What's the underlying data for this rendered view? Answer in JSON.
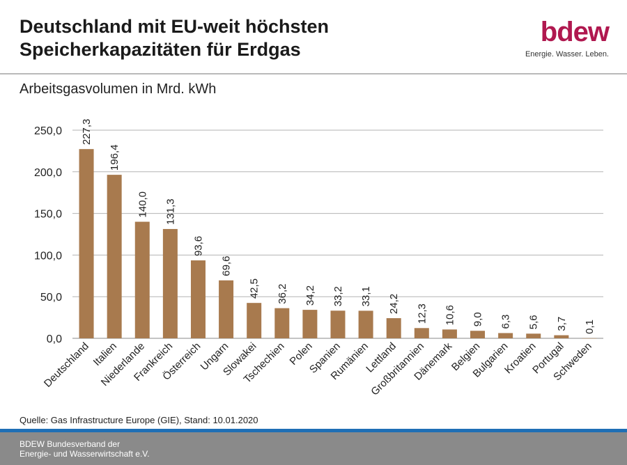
{
  "header": {
    "title_line1": "Deutschland mit EU-weit höchsten",
    "title_line2": "Speicherkapazitäten für Erdgas"
  },
  "logo": {
    "wordmark": "bdew",
    "tagline": "Energie. Wasser. Leben.",
    "color": "#b0184f"
  },
  "chart_data": {
    "type": "bar",
    "title": "Arbeitsgasvolumen in Mrd. kWh",
    "categories": [
      "Deutschland",
      "Italien",
      "Niederlande",
      "Frankreich",
      "Österreich",
      "Ungarn",
      "Slowakei",
      "Tschechien",
      "Polen",
      "Spanien",
      "Rumänien",
      "Lettland",
      "Großbritannien",
      "Dänemark",
      "Belgien",
      "Bulgarien",
      "Kroatien",
      "Portugal",
      "Schweden"
    ],
    "values": [
      227.3,
      196.4,
      140.0,
      131.3,
      93.6,
      69.6,
      42.5,
      36.2,
      34.2,
      33.2,
      33.1,
      24.2,
      12.3,
      10.6,
      9.0,
      6.3,
      5.6,
      3.7,
      0.1
    ],
    "value_labels": [
      "227,3",
      "196,4",
      "140,0",
      "131,3",
      "93,6",
      "69,6",
      "42,5",
      "36,2",
      "34,2",
      "33,2",
      "33,1",
      "24,2",
      "12,3",
      "10,6",
      "9,0",
      "6,3",
      "5,6",
      "3,7",
      "0,1"
    ],
    "ylim": [
      0,
      250
    ],
    "yticks": [
      0,
      50,
      100,
      150,
      200,
      250
    ],
    "ytick_labels": [
      "0,0",
      "50,0",
      "100,0",
      "150,0",
      "200,0",
      "250,0"
    ],
    "grid": true,
    "bar_color": "#a87a4e",
    "xlabel": "",
    "ylabel": ""
  },
  "source": "Quelle: Gas Infrastructure Europe (GIE), Stand: 10.01.2020",
  "footer": {
    "line1": "BDEW Bundesverband der",
    "line2": "Energie- und Wasserwirtschaft e.V."
  }
}
